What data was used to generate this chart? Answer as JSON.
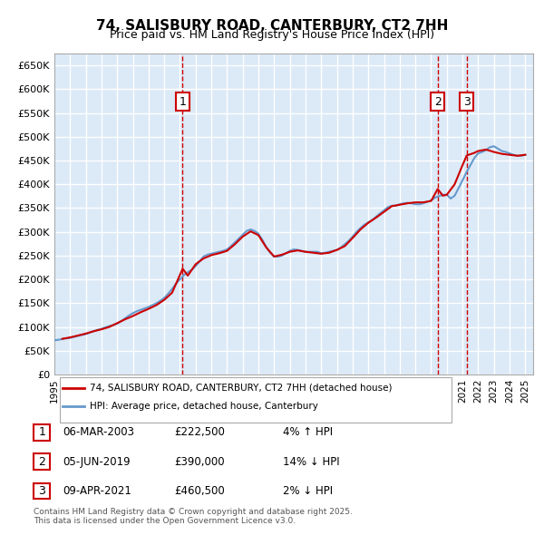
{
  "title": "74, SALISBURY ROAD, CANTERBURY, CT2 7HH",
  "subtitle": "Price paid vs. HM Land Registry's House Price Index (HPI)",
  "ylabel_ticks": [
    "£0",
    "£50K",
    "£100K",
    "£150K",
    "£200K",
    "£250K",
    "£300K",
    "£350K",
    "£400K",
    "£450K",
    "£500K",
    "£550K",
    "£600K",
    "£650K"
  ],
  "ytick_values": [
    0,
    50000,
    100000,
    150000,
    200000,
    250000,
    300000,
    350000,
    400000,
    450000,
    500000,
    550000,
    600000,
    650000
  ],
  "ylim": [
    0,
    675000
  ],
  "xlim_start": 1995.0,
  "xlim_end": 2025.5,
  "background_color": "#dce9f7",
  "plot_bg": "#dce9f7",
  "grid_color": "#ffffff",
  "sale_color": "#cc0000",
  "hpi_color": "#6699cc",
  "sale_label": "74, SALISBURY ROAD, CANTERBURY, CT2 7HH (detached house)",
  "hpi_label": "HPI: Average price, detached house, Canterbury",
  "transaction_labels": [
    "1",
    "2",
    "3"
  ],
  "transaction_dates": [
    2003.17,
    2019.42,
    2021.27
  ],
  "transaction_prices": [
    222500,
    390000,
    460500
  ],
  "transaction_texts": [
    "1   06-MAR-2003   £222,500   4% ↑ HPI",
    "2   05-JUN-2019   £390,000   14% ↓ HPI",
    "3   09-APR-2021   £460,500   2% ↓ HPI"
  ],
  "footer": "Contains HM Land Registry data © Crown copyright and database right 2025.\nThis data is licensed under the Open Government Licence v3.0.",
  "legend_line1": "74, SALISBURY ROAD, CANTERBURY, CT2 7HH (detached house)",
  "legend_line2": "HPI: Average price, detached house, Canterbury",
  "hpi_data_x": [
    1995.0,
    1995.25,
    1995.5,
    1995.75,
    1996.0,
    1996.25,
    1996.5,
    1996.75,
    1997.0,
    1997.25,
    1997.5,
    1997.75,
    1998.0,
    1998.25,
    1998.5,
    1998.75,
    1999.0,
    1999.25,
    1999.5,
    1999.75,
    2000.0,
    2000.25,
    2000.5,
    2000.75,
    2001.0,
    2001.25,
    2001.5,
    2001.75,
    2002.0,
    2002.25,
    2002.5,
    2002.75,
    2003.0,
    2003.25,
    2003.5,
    2003.75,
    2004.0,
    2004.25,
    2004.5,
    2004.75,
    2005.0,
    2005.25,
    2005.5,
    2005.75,
    2006.0,
    2006.25,
    2006.5,
    2006.75,
    2007.0,
    2007.25,
    2007.5,
    2007.75,
    2008.0,
    2008.25,
    2008.5,
    2008.75,
    2009.0,
    2009.25,
    2009.5,
    2009.75,
    2010.0,
    2010.25,
    2010.5,
    2010.75,
    2011.0,
    2011.25,
    2011.5,
    2011.75,
    2012.0,
    2012.25,
    2012.5,
    2012.75,
    2013.0,
    2013.25,
    2013.5,
    2013.75,
    2014.0,
    2014.25,
    2014.5,
    2014.75,
    2015.0,
    2015.25,
    2015.5,
    2015.75,
    2016.0,
    2016.25,
    2016.5,
    2016.75,
    2017.0,
    2017.25,
    2017.5,
    2017.75,
    2018.0,
    2018.25,
    2018.5,
    2018.75,
    2019.0,
    2019.25,
    2019.5,
    2019.75,
    2020.0,
    2020.25,
    2020.5,
    2020.75,
    2021.0,
    2021.25,
    2021.5,
    2021.75,
    2022.0,
    2022.25,
    2022.5,
    2022.75,
    2023.0,
    2023.25,
    2023.5,
    2023.75,
    2024.0,
    2024.25,
    2024.5,
    2024.75,
    2025.0
  ],
  "hpi_data_y": [
    72000,
    73000,
    74500,
    76000,
    77000,
    79000,
    81000,
    83000,
    85000,
    88000,
    91000,
    94000,
    96000,
    99000,
    102000,
    104000,
    107000,
    112000,
    118000,
    124000,
    129000,
    133000,
    136000,
    139000,
    142000,
    146000,
    150000,
    155000,
    161000,
    170000,
    180000,
    191000,
    200000,
    209000,
    215000,
    220000,
    228000,
    238000,
    248000,
    252000,
    254000,
    256000,
    258000,
    260000,
    263000,
    270000,
    278000,
    286000,
    294000,
    302000,
    305000,
    302000,
    296000,
    283000,
    268000,
    256000,
    248000,
    248000,
    250000,
    255000,
    260000,
    263000,
    262000,
    260000,
    258000,
    258000,
    258000,
    258000,
    255000,
    256000,
    258000,
    260000,
    262000,
    267000,
    274000,
    281000,
    290000,
    300000,
    308000,
    315000,
    320000,
    325000,
    332000,
    339000,
    345000,
    352000,
    355000,
    355000,
    358000,
    360000,
    361000,
    360000,
    358000,
    358000,
    360000,
    363000,
    366000,
    372000,
    375000,
    378000,
    378000,
    370000,
    376000,
    392000,
    408000,
    425000,
    440000,
    455000,
    465000,
    468000,
    472000,
    478000,
    480000,
    475000,
    470000,
    468000,
    465000,
    462000,
    460000,
    460000,
    462000
  ],
  "sale_data_x": [
    1995.5,
    1996.0,
    1996.5,
    1997.0,
    1997.5,
    1998.0,
    1998.5,
    1999.0,
    1999.5,
    2000.0,
    2000.5,
    2001.0,
    2001.5,
    2002.0,
    2002.5,
    2003.17,
    2003.5,
    2004.0,
    2004.5,
    2005.0,
    2005.5,
    2006.0,
    2006.5,
    2007.0,
    2007.5,
    2008.0,
    2008.5,
    2009.0,
    2009.5,
    2010.0,
    2010.5,
    2011.0,
    2011.5,
    2012.0,
    2012.5,
    2013.0,
    2013.5,
    2014.0,
    2014.5,
    2015.0,
    2015.5,
    2016.0,
    2016.5,
    2017.0,
    2017.5,
    2018.0,
    2018.5,
    2019.0,
    2019.42,
    2019.75,
    2020.0,
    2020.5,
    2021.0,
    2021.27,
    2021.75,
    2022.0,
    2022.5,
    2023.0,
    2023.5,
    2024.0,
    2024.5,
    2025.0
  ],
  "sale_data_y": [
    75000,
    78000,
    82000,
    86000,
    91000,
    95000,
    100000,
    108000,
    116000,
    123000,
    131000,
    138000,
    146000,
    157000,
    172000,
    222500,
    208000,
    232000,
    244000,
    251000,
    255000,
    260000,
    274000,
    290000,
    301000,
    293000,
    267000,
    248000,
    252000,
    258000,
    261000,
    258000,
    256000,
    254000,
    256000,
    262000,
    270000,
    287000,
    305000,
    319000,
    330000,
    342000,
    354000,
    357000,
    360000,
    362000,
    362000,
    365000,
    390000,
    376000,
    378000,
    400000,
    440000,
    460500,
    466000,
    470000,
    473000,
    468000,
    464000,
    462000,
    460000,
    462000
  ]
}
